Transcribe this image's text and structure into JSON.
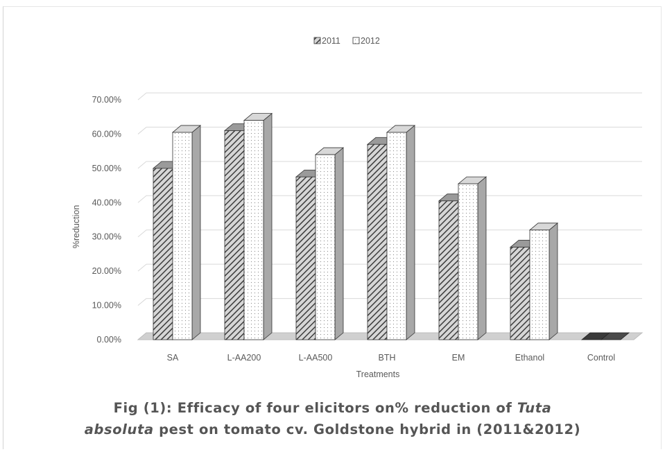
{
  "chart_data": {
    "type": "bar",
    "title": "",
    "xlabel": "Treatments",
    "ylabel": "%reduction",
    "ylim": [
      0,
      0.7
    ],
    "yticks": [
      "0.00%",
      "10.00%",
      "20.00%",
      "30.00%",
      "40.00%",
      "50.00%",
      "60.00%",
      "70.00%"
    ],
    "categories": [
      "SA",
      "L-AA200",
      "L-AA500",
      "BTH",
      "EM",
      "Ethanol",
      "Control"
    ],
    "series": [
      {
        "name": "2011",
        "values": [
          0.5,
          0.61,
          0.475,
          0.57,
          0.405,
          0.27,
          0.0
        ],
        "pattern": "diagonal-hatch"
      },
      {
        "name": "2012",
        "values": [
          0.605,
          0.64,
          0.54,
          0.605,
          0.455,
          0.32,
          0.0
        ],
        "pattern": "dots"
      }
    ],
    "legend_position": "top-center",
    "grid": true,
    "style": "3d-clustered-column"
  },
  "caption": {
    "line1_a": "Fig (1): Efficacy of four elicitors on% reduction of ",
    "line1_b": "Tuta",
    "line2_a": "absoluta",
    "line2_b": " pest on tomato cv. Goldstone hybrid in (2011&2012)"
  }
}
